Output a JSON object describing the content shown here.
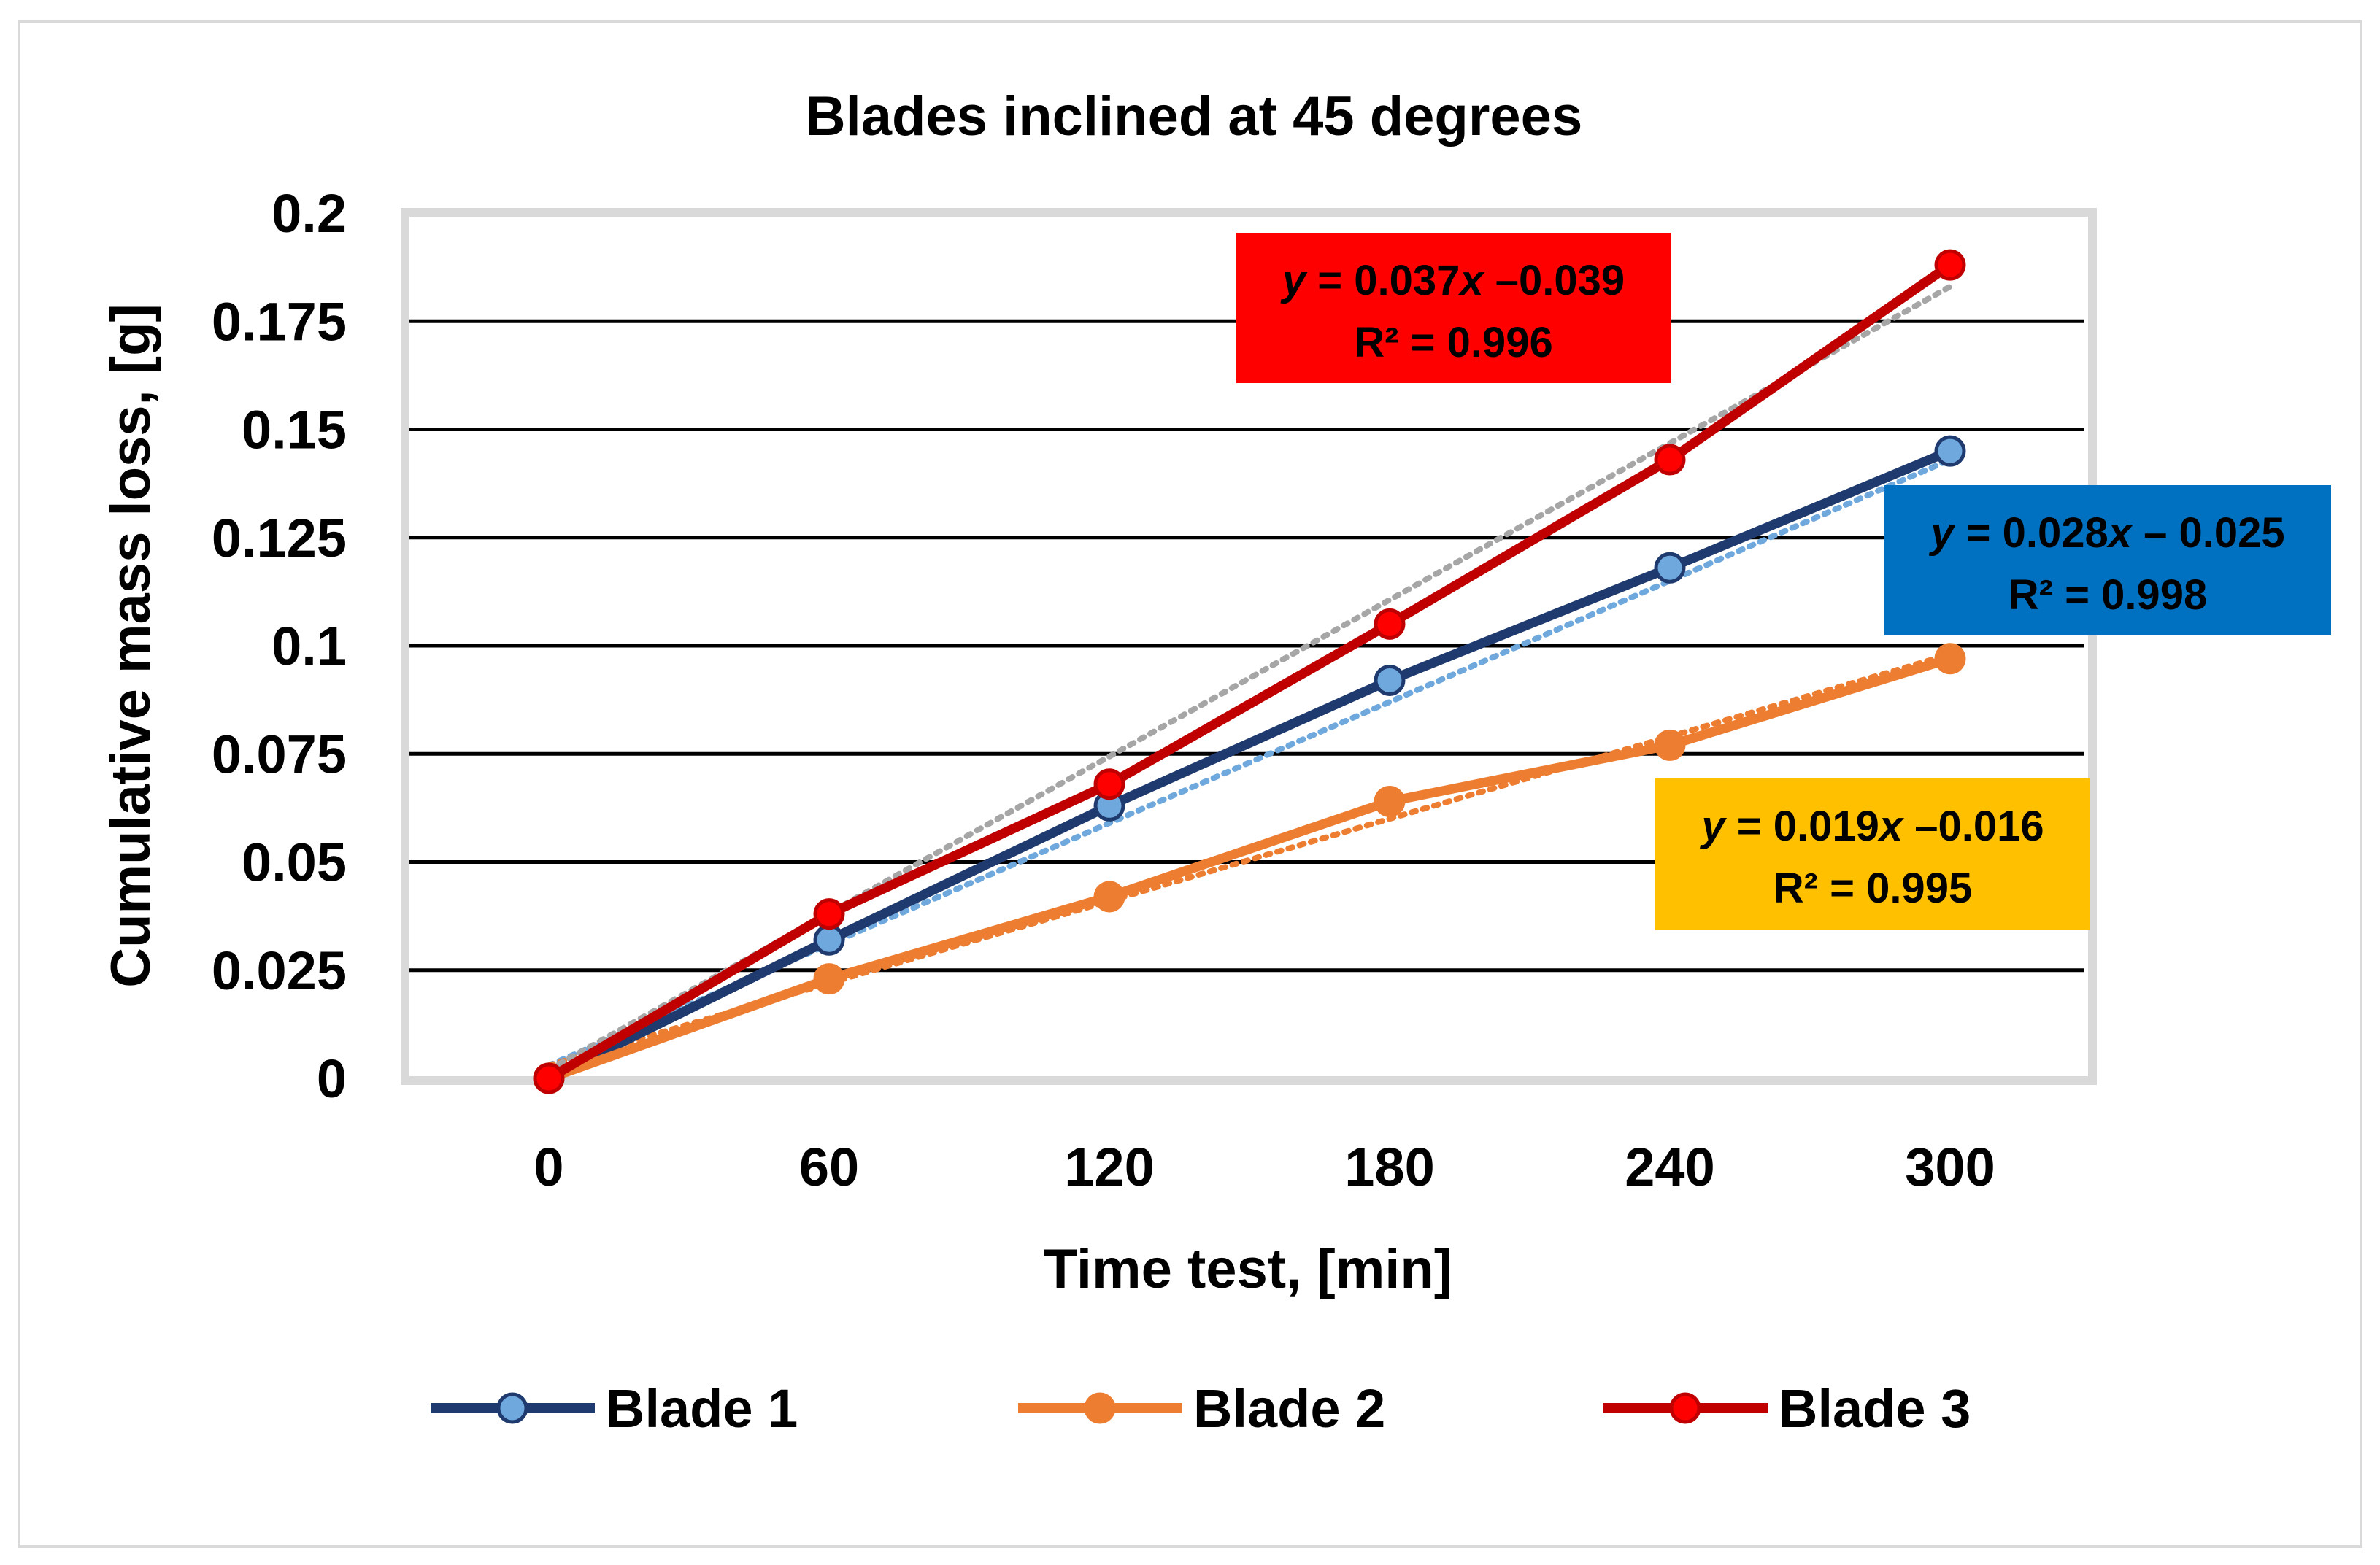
{
  "chart_data": {
    "type": "line",
    "title": "Blades inclined at 45 degrees",
    "xlabel": "Time test, [min]",
    "ylabel": "Cumulative mass loss, [g]",
    "categories": [
      "0",
      "60",
      "120",
      "180",
      "240",
      "300"
    ],
    "x": [
      0,
      60,
      120,
      180,
      240,
      300
    ],
    "yticks": [
      "0",
      "0.025",
      "0.05",
      "0.075",
      "0.1",
      "0.125",
      "0.15",
      "0.175",
      "0.2"
    ],
    "ylim": [
      0,
      0.2
    ],
    "grid": true,
    "legend_position": "bottom",
    "series": [
      {
        "name": "Blade 1",
        "values": [
          0,
          0.032,
          0.063,
          0.092,
          0.118,
          0.145
        ],
        "color": "#1f3a6e",
        "marker_color": "#6fa8dc",
        "trend": {
          "equation_prefix": "y",
          "equation_mid": " = 0.028",
          "equation_x": "x",
          "equation_suffix": " – 0.025",
          "r2": "R² = 0.998",
          "box_color": "#0070c0",
          "text_color": "#000000",
          "slope": 0.028,
          "intercept": -0.025,
          "trend_color": "#6fa8dc"
        }
      },
      {
        "name": "Blade 2",
        "values": [
          0,
          0.023,
          0.042,
          0.064,
          0.077,
          0.097
        ],
        "color": "#ed7d31",
        "marker_color": "#ed7d31",
        "trend": {
          "equation_prefix": "y",
          "equation_mid": " = 0.019",
          "equation_x": "x",
          "equation_suffix": " –0.016",
          "r2": "R² = 0.995",
          "box_color": "#ffc000",
          "text_color": "#000000",
          "slope": 0.019,
          "intercept": -0.016,
          "trend_color": "#ed7d31"
        }
      },
      {
        "name": "Blade 3",
        "values": [
          0,
          0.038,
          0.068,
          0.105,
          0.143,
          0.188
        ],
        "color": "#c00000",
        "marker_color": "#ff0000",
        "trend": {
          "equation_prefix": "y",
          "equation_mid": " = 0.037",
          "equation_x": "x",
          "equation_suffix": " –0.039",
          "r2": "R² = 0.996",
          "box_color": "#ff0000",
          "text_color": "#000000",
          "slope": 0.037,
          "intercept": -0.039,
          "trend_color": "#a6a6a6"
        }
      }
    ]
  }
}
